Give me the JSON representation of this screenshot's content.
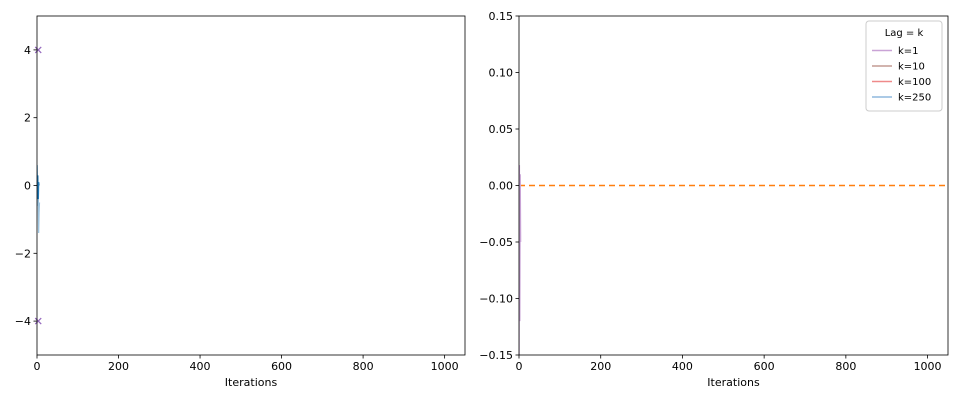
{
  "chart_data": [
    {
      "type": "line",
      "title": "",
      "xlabel": "Iterations",
      "ylabel": "",
      "xlim": [
        0,
        1050
      ],
      "ylim": [
        -5,
        5
      ],
      "xticks": [
        0,
        200,
        400,
        600,
        800,
        1000
      ],
      "yticks": [
        -4,
        -2,
        0,
        2,
        4
      ],
      "ytick_labels": [
        "−4",
        "−2",
        "0",
        "2",
        "4"
      ],
      "grid": false,
      "series": [
        {
          "color": "#1f77b4",
          "x": [
            0,
            1,
            2,
            3,
            4,
            5
          ],
          "y": [
            0.6,
            -0.4,
            0.3,
            -0.6,
            0.1,
            0.0
          ]
        },
        {
          "color": "#9ec5e0",
          "x": [
            3,
            4,
            5,
            6
          ],
          "y": [
            -0.4,
            -1.4,
            -0.8,
            -0.5
          ]
        }
      ],
      "markers": [
        {
          "color": "#9467bd",
          "symbol": "x",
          "x": 3,
          "y": 4
        },
        {
          "color": "#9467bd",
          "symbol": "x",
          "x": 3,
          "y": -4
        }
      ]
    },
    {
      "type": "line",
      "title": "",
      "xlabel": "Iterations",
      "ylabel": "",
      "xlim": [
        0,
        1050
      ],
      "ylim": [
        -0.15,
        0.15
      ],
      "xticks": [
        0,
        200,
        400,
        600,
        800,
        1000
      ],
      "yticks": [
        -0.15,
        -0.1,
        -0.05,
        0.0,
        0.05,
        0.1,
        0.15
      ],
      "ytick_labels": [
        "−0.15",
        "−0.10",
        "−0.05",
        "0.00",
        "0.05",
        "0.10",
        "0.15"
      ],
      "grid": false,
      "legend_title": "Lag = k",
      "legend_position": "top-right",
      "series": [
        {
          "name": "k=1",
          "color": "#c9a3d6",
          "x": [
            0,
            1,
            2,
            3,
            4
          ],
          "y": [
            -0.15,
            0.018,
            -0.12,
            0.01,
            -0.05
          ]
        },
        {
          "name": "k=10",
          "color": "#c49c94",
          "x": [
            0,
            1
          ],
          "y": [
            0.0,
            0.0
          ]
        },
        {
          "name": "k=100",
          "color": "#ef8a8a",
          "x": [
            0,
            1
          ],
          "y": [
            0.0,
            0.0
          ]
        },
        {
          "name": "k=250",
          "color": "#8fb8de",
          "x": [
            0,
            1
          ],
          "y": [
            0.0,
            0.0
          ]
        }
      ],
      "reference_line": {
        "y": 0.0,
        "color": "#ff7f0e",
        "style": "dashed"
      }
    }
  ]
}
